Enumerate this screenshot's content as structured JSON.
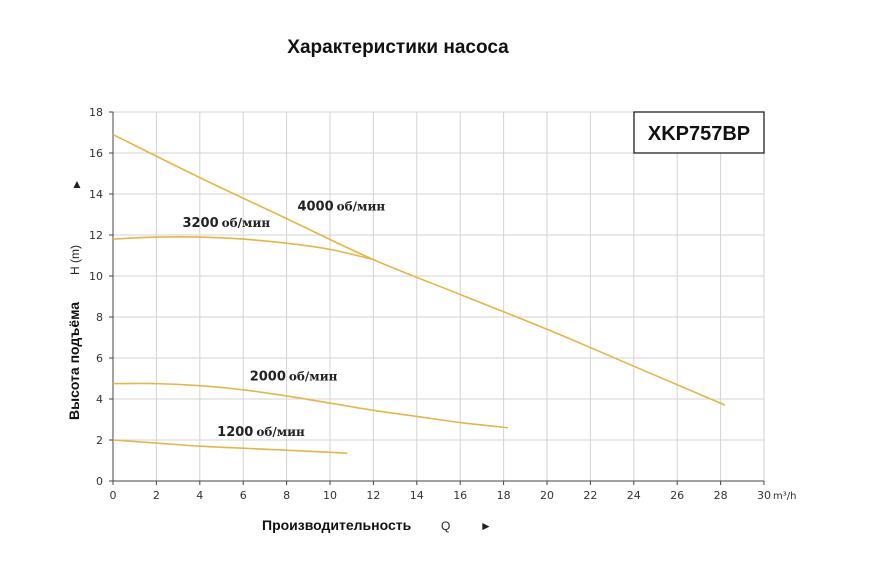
{
  "title": "Характеристики насоса",
  "model": "XKP757BP",
  "axes": {
    "x_label": "Производительность",
    "x_symbol": "Q",
    "x_unit": "m³/h",
    "y_label": "Высота подъёма",
    "y_symbol": "H (m)",
    "arrow": "►",
    "arrow_up": "▲"
  },
  "chart_data": {
    "type": "line",
    "title": "Характеристики насоса",
    "xlabel": "Производительность Q",
    "ylabel": "Высота подъёма H (m)",
    "xlim": [
      0,
      30
    ],
    "ylim": [
      0,
      18
    ],
    "x_ticks": [
      0,
      2,
      4,
      6,
      8,
      10,
      12,
      14,
      16,
      18,
      20,
      22,
      24,
      26,
      28,
      30
    ],
    "y_ticks": [
      0,
      2,
      4,
      6,
      8,
      10,
      12,
      14,
      16,
      18
    ],
    "grid": true,
    "series": [
      {
        "name": "4000 об/мин",
        "label_num": "4000",
        "label_unit": "об/мин",
        "color": "#e6b54a",
        "x": [
          0,
          4,
          8,
          12,
          16,
          20,
          24,
          28.2
        ],
        "y": [
          16.9,
          14.8,
          12.8,
          10.8,
          9.1,
          7.4,
          5.6,
          3.7
        ]
      },
      {
        "name": "3200 об/мин",
        "label_num": "3200",
        "label_unit": "об/мин",
        "color": "#e6b54a",
        "x": [
          0,
          2,
          4,
          6,
          8,
          10,
          12
        ],
        "y": [
          11.8,
          11.9,
          11.9,
          11.8,
          11.6,
          11.3,
          10.8
        ]
      },
      {
        "name": "2000 об/мин",
        "label_num": "2000",
        "label_unit": "об/мин",
        "color": "#e6b54a",
        "x": [
          0,
          2,
          4,
          6,
          8,
          10,
          12,
          14,
          16,
          18.2
        ],
        "y": [
          4.75,
          4.75,
          4.65,
          4.45,
          4.15,
          3.8,
          3.45,
          3.15,
          2.85,
          2.6
        ]
      },
      {
        "name": "1200 об/мин",
        "label_num": "1200",
        "label_unit": "об/мин",
        "color": "#e6b54a",
        "x": [
          0,
          2,
          4,
          6,
          8,
          10,
          10.8
        ],
        "y": [
          2.0,
          1.85,
          1.7,
          1.6,
          1.5,
          1.4,
          1.35
        ]
      }
    ]
  }
}
